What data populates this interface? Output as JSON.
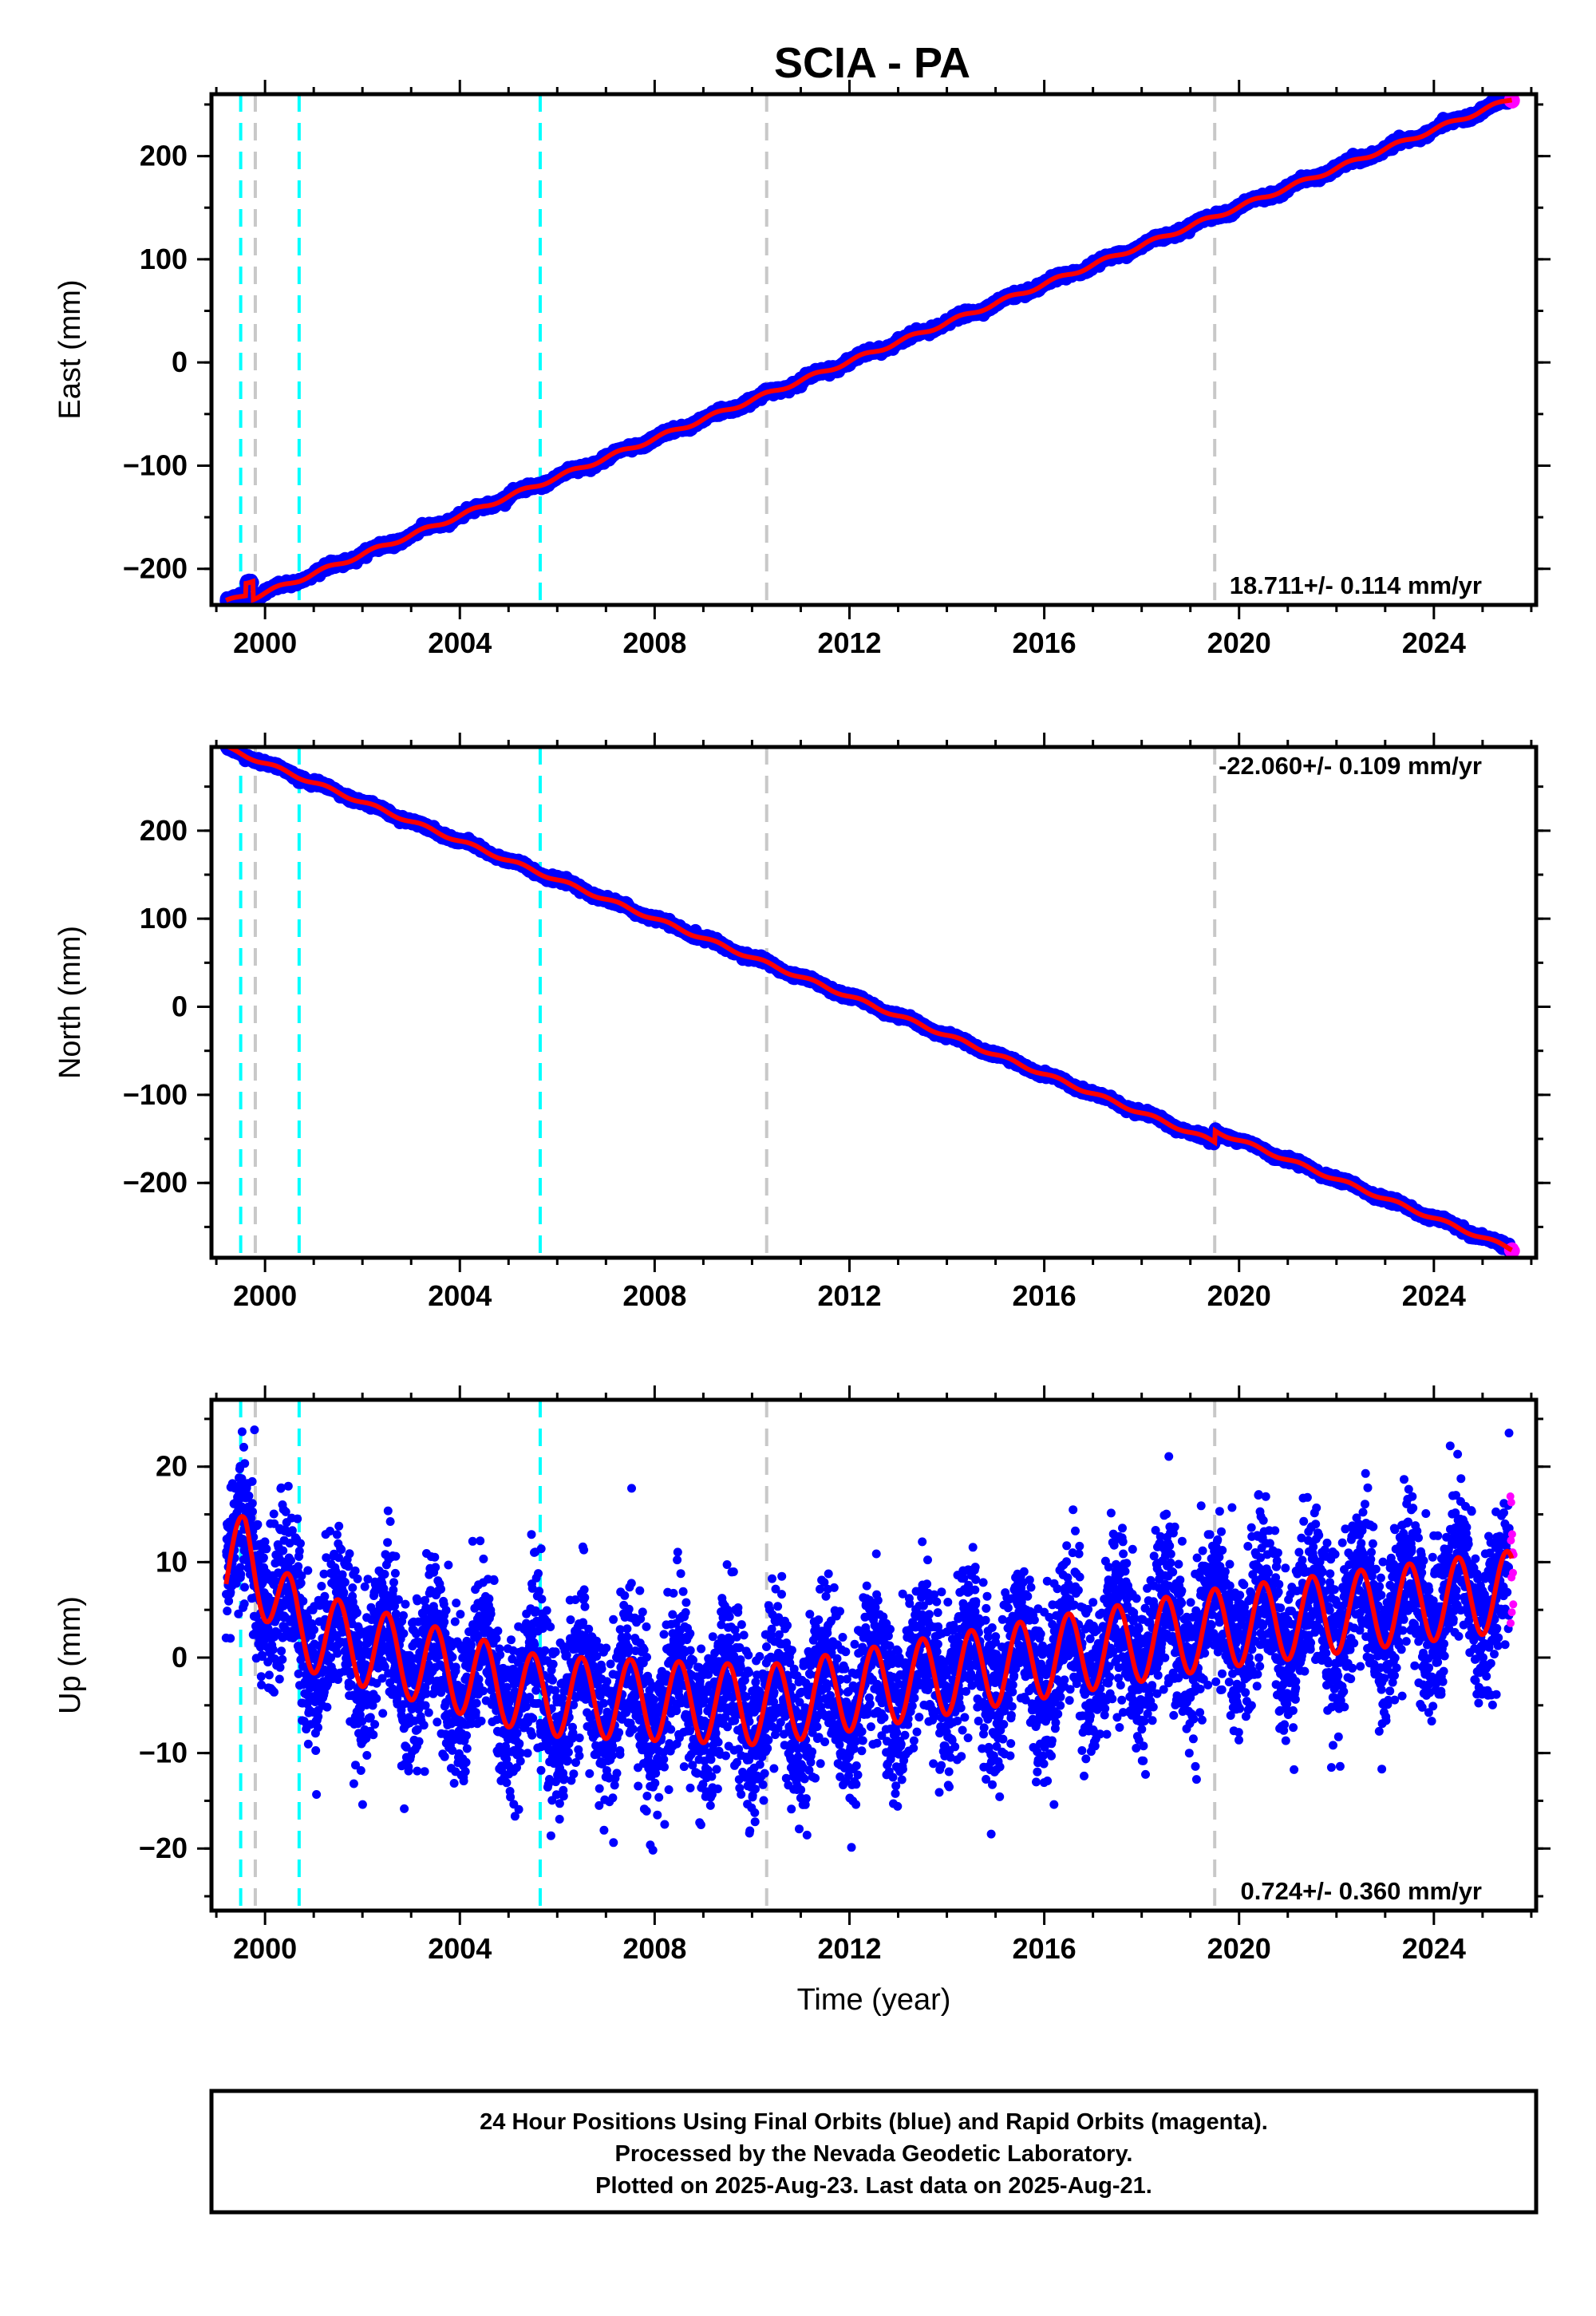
{
  "title": "SCIA - PA",
  "colors": {
    "final": "#0000ff",
    "rapid": "#ff00ff",
    "model": "#ff0000",
    "equipment_change": "#00ffff",
    "earthquake": "#c8c8c8"
  },
  "footer": {
    "line1": "24 Hour Positions Using Final Orbits (blue) and Rapid Orbits (magenta).",
    "line2": "Processed by the Nevada Geodetic Laboratory.",
    "line3": "Plotted on 2025-Aug-23. Last data on 2025-Aug-21."
  },
  "chart_data": [
    {
      "type": "scatter",
      "name": "east",
      "ylabel": "East (mm)",
      "xlabel": "",
      "xlim": [
        1998.9,
        2026.1
      ],
      "ylim": [
        -235,
        260
      ],
      "xticks": [
        "2000",
        "2004",
        "2008",
        "2012",
        "2016",
        "2020",
        "2024"
      ],
      "yticks": [
        "200",
        "100",
        "0",
        "−100",
        "−200"
      ],
      "annotation": "18.711+/- 0.114 mm/yr",
      "annotation_corner": "bottom-right",
      "series_fit": {
        "rate_mm_yr": 18.711,
        "value_at_2000": -217.5,
        "start": 1999.2,
        "end": 2025.6
      },
      "jumps": [
        {
          "year": 1999.6,
          "offset": 12
        },
        {
          "year": 1999.75,
          "offset": -18
        }
      ],
      "equipment_changes": [
        1999.5,
        2000.7,
        2005.65
      ],
      "earthquakes": [
        1999.8,
        2010.3,
        2019.5
      ],
      "grid": false
    },
    {
      "type": "scatter",
      "name": "north",
      "ylabel": "North (mm)",
      "xlabel": "",
      "xlim": [
        1998.9,
        2026.1
      ],
      "ylim": [
        -285,
        295
      ],
      "xticks": [
        "2000",
        "2004",
        "2008",
        "2012",
        "2016",
        "2020",
        "2024"
      ],
      "yticks": [
        "200",
        "100",
        "0",
        "−100",
        "−200"
      ],
      "annotation": "-22.060+/- 0.109 mm/yr",
      "annotation_corner": "top-right",
      "series_fit": {
        "rate_mm_yr": -22.06,
        "value_at_2000": 276.5,
        "start": 1999.2,
        "end": 2025.6
      },
      "jumps": [
        {
          "year": 2019.5,
          "offset": 13
        }
      ],
      "equipment_changes": [
        1999.5,
        2000.7,
        2005.65
      ],
      "earthquakes": [
        1999.8,
        2010.3,
        2019.5
      ],
      "grid": false
    },
    {
      "type": "scatter",
      "name": "up",
      "ylabel": "Up (mm)",
      "xlabel": "Time (year)",
      "xlim": [
        1998.9,
        2026.1
      ],
      "ylim": [
        -26.5,
        27
      ],
      "xticks": [
        "2000",
        "2004",
        "2008",
        "2012",
        "2016",
        "2020",
        "2024"
      ],
      "yticks": [
        "20",
        "10",
        "0",
        "−10",
        "−20"
      ],
      "annotation": "0.724+/- 0.360 mm/yr",
      "annotation_corner": "bottom-right",
      "seasonal_amplitude_mm": 4.2,
      "offsets": [
        [
          1999.2,
          9
        ],
        [
          1999.6,
          11
        ],
        [
          2000.7,
          3
        ],
        [
          2005.65,
          -4
        ],
        [
          2010.3,
          -5
        ],
        [
          2019.5,
          3
        ],
        [
          2025.6,
          7
        ]
      ],
      "equipment_changes": [
        1999.5,
        2000.7,
        2005.65
      ],
      "earthquakes": [
        1999.8,
        2010.3,
        2019.5
      ],
      "grid": false
    }
  ]
}
